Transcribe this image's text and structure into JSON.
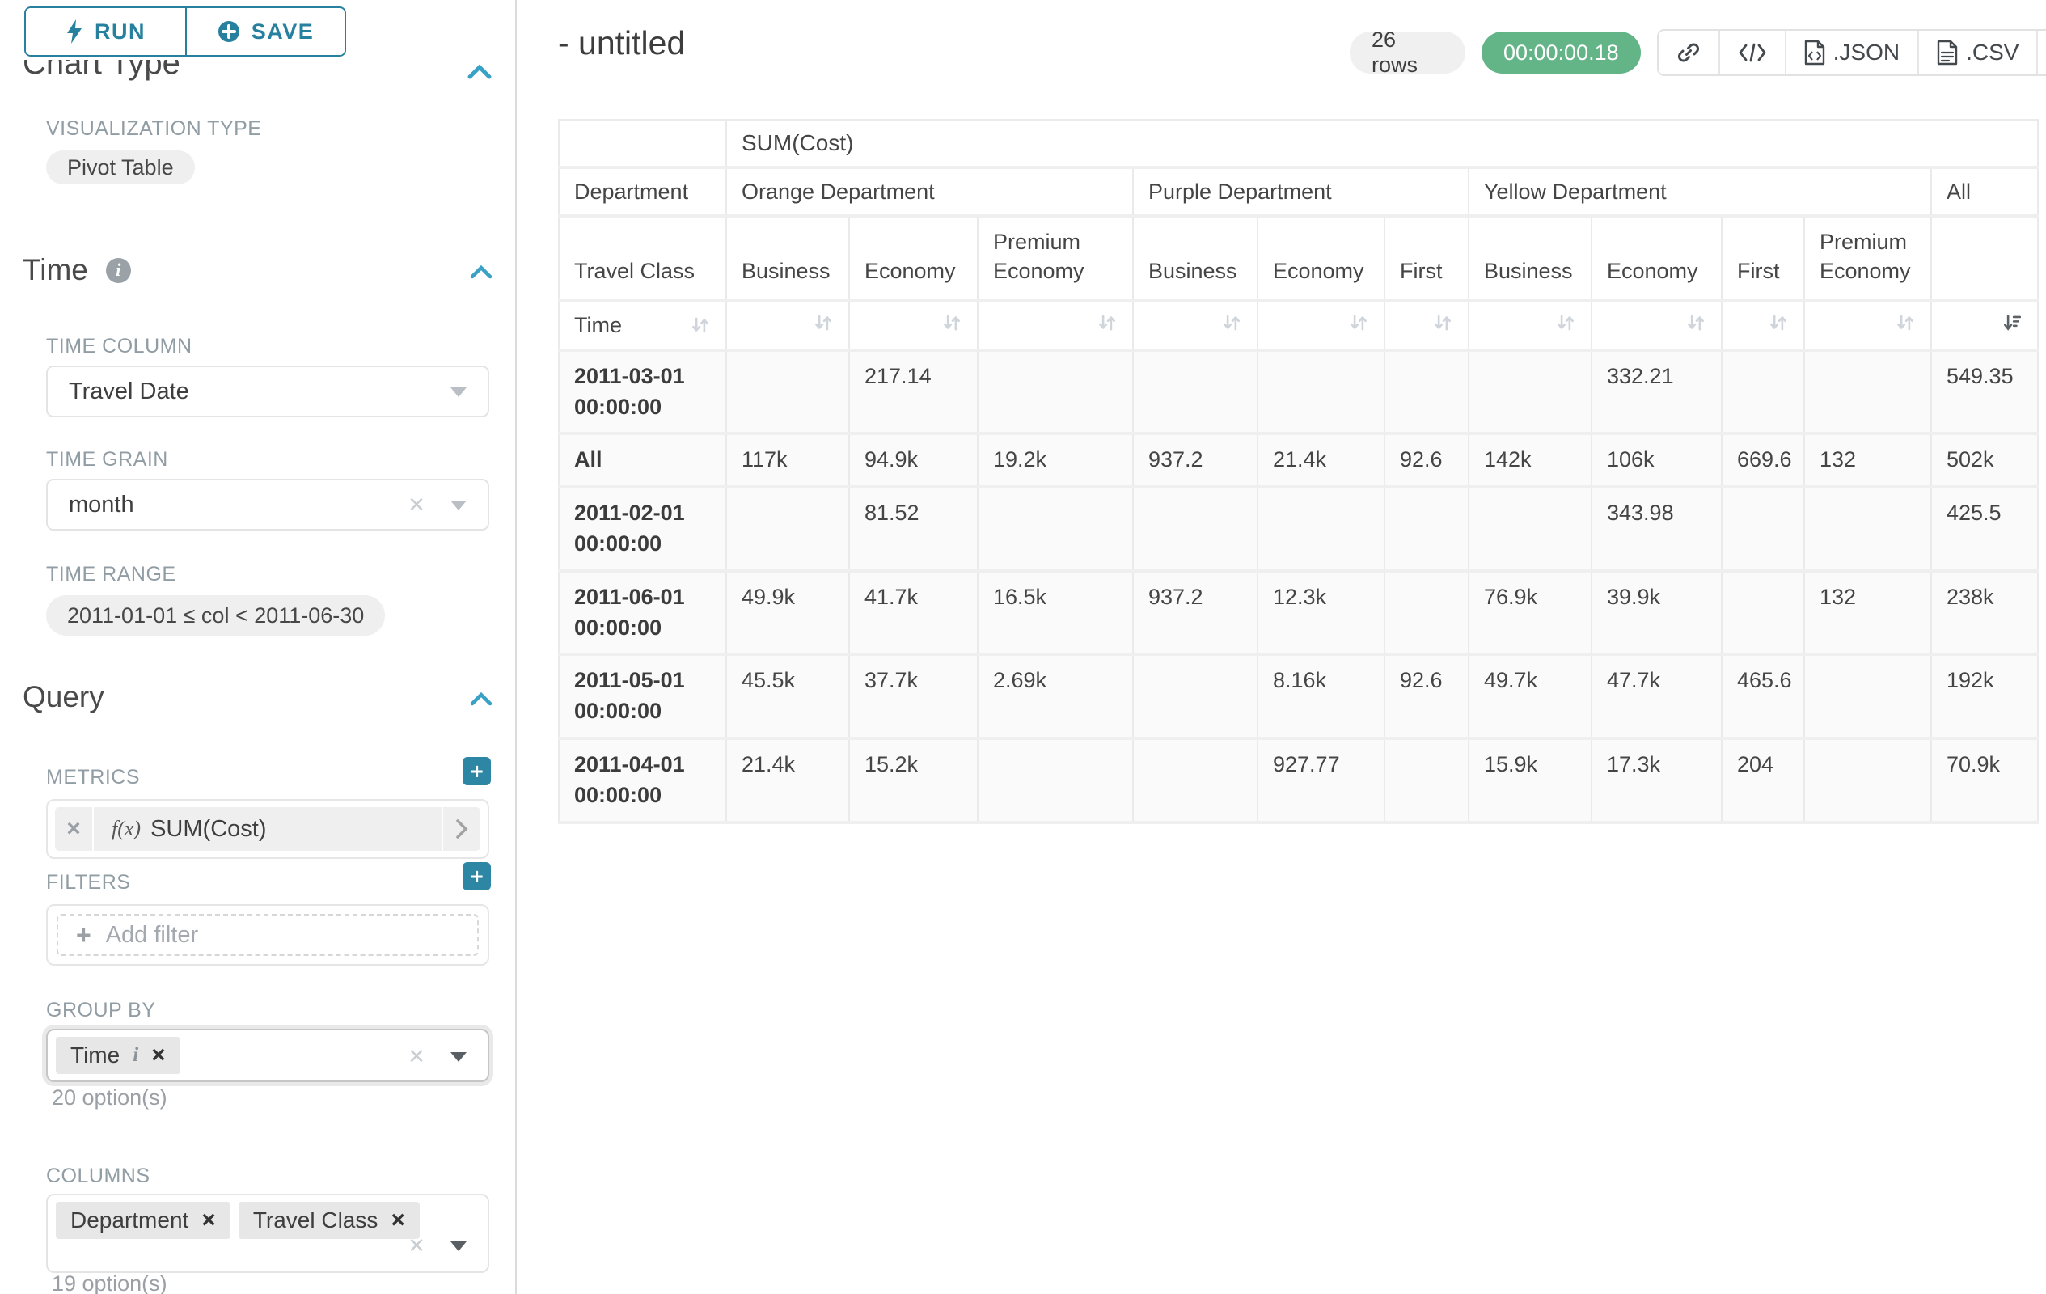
{
  "sidebar": {
    "run_label": "RUN",
    "save_label": "SAVE",
    "clipped_section": "Chart Type",
    "viz": {
      "label": "VISUALIZATION TYPE",
      "value": "Pivot Table"
    },
    "time_section": {
      "title": "Time",
      "time_column_label": "TIME COLUMN",
      "time_column_value": "Travel Date",
      "time_grain_label": "TIME GRAIN",
      "time_grain_value": "month",
      "time_range_label": "TIME RANGE",
      "time_range_value": "2011-01-01 ≤ col < 2011-06-30"
    },
    "query_section": {
      "title": "Query",
      "metrics_label": "METRICS",
      "metric_fx": "f(x)",
      "metric_value": "SUM(Cost)",
      "filters_label": "FILTERS",
      "add_filter_label": "Add filter",
      "group_by_label": "GROUP BY",
      "group_by_tags": [
        "Time"
      ],
      "group_by_options": "20 option(s)",
      "columns_label": "COLUMNS",
      "columns_tags": [
        "Department",
        "Travel Class"
      ],
      "columns_options": "19 option(s)"
    }
  },
  "main": {
    "title": "- untitled",
    "row_count": "26 rows",
    "timer": "00:00:00.18",
    "toolbar": {
      "icons": [
        "link-icon",
        "code-icon",
        "file-code-icon",
        "file-text-icon",
        "menu-icon"
      ],
      "json_label": ".JSON",
      "csv_label": ".CSV"
    },
    "colors": {
      "accent_teal": "#27809d",
      "chevron_teal": "#38a1c6",
      "timer_green": "#63b587",
      "badge_gray": "#f0f0f1"
    },
    "table": {
      "metric_header": "SUM(Cost)",
      "dept_header": "Department",
      "class_header": "Travel Class",
      "time_header": "Time",
      "all_label": "All",
      "departments": [
        {
          "label": "Orange Department",
          "span": 3
        },
        {
          "label": "Purple Department",
          "span": 3
        },
        {
          "label": "Yellow Department",
          "span": 4
        }
      ],
      "classes": [
        "Business",
        "Economy",
        "Premium Economy",
        "Business",
        "Economy",
        "First",
        "Business",
        "Economy",
        "First",
        "Premium Economy"
      ],
      "rows": [
        {
          "label": "2011-03-01 00:00:00",
          "height": "h-tall",
          "values": [
            "",
            "217.14",
            "",
            "",
            "",
            "",
            "",
            "332.21",
            "",
            "",
            "549.35"
          ]
        },
        {
          "label": "All",
          "height": "h-short",
          "values": [
            "117k",
            "94.9k",
            "19.2k",
            "937.2",
            "21.4k",
            "92.6",
            "142k",
            "106k",
            "669.6",
            "132",
            "502k"
          ]
        },
        {
          "label": "2011-02-01 00:00:00",
          "height": "h-med",
          "values": [
            "",
            "81.52",
            "",
            "",
            "",
            "",
            "",
            "343.98",
            "",
            "",
            "425.5"
          ]
        },
        {
          "label": "2011-06-01 00:00:00",
          "height": "h-med",
          "values": [
            "49.9k",
            "41.7k",
            "16.5k",
            "937.2",
            "12.3k",
            "",
            "76.9k",
            "39.9k",
            "",
            "132",
            "238k"
          ]
        },
        {
          "label": "2011-05-01 00:00:00",
          "height": "h-med",
          "values": [
            "45.5k",
            "37.7k",
            "2.69k",
            "",
            "8.16k",
            "92.6",
            "49.7k",
            "47.7k",
            "465.6",
            "",
            "192k"
          ]
        },
        {
          "label": "2011-04-01 00:00:00",
          "height": "h-last",
          "values": [
            "21.4k",
            "15.2k",
            "",
            "",
            "927.77",
            "",
            "15.9k",
            "17.3k",
            "204",
            "",
            "70.9k"
          ]
        }
      ]
    }
  }
}
